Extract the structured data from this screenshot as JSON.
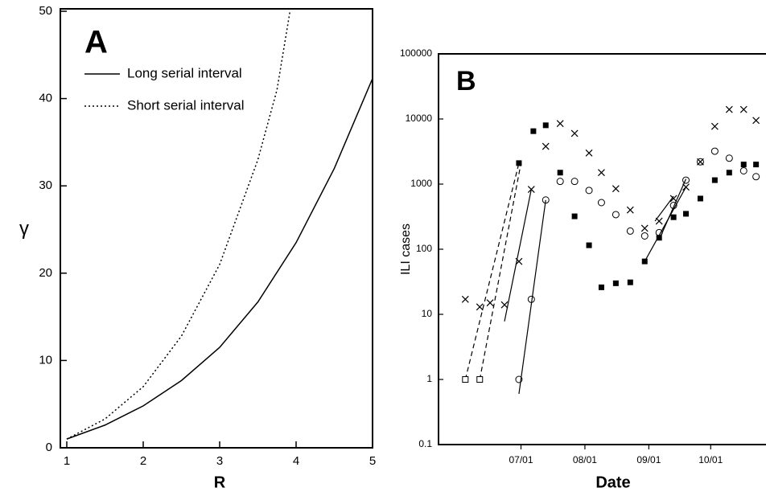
{
  "chart_data": [
    {
      "type": "line",
      "label": "A",
      "x_label": "R",
      "y_label": "γ",
      "xlim": [
        1,
        5
      ],
      "ylim": [
        0,
        50
      ],
      "xticks": [
        1,
        2,
        3,
        4,
        5
      ],
      "yticks": [
        0,
        10,
        20,
        30,
        40,
        50
      ],
      "series": [
        {
          "name": "Long serial interval",
          "style": "solid",
          "color": "#000000",
          "x": [
            1,
            1.5,
            2,
            2.5,
            3,
            3.5,
            4,
            4.5,
            5
          ],
          "values": [
            1,
            2.6,
            4.8,
            7.7,
            11.5,
            16.7,
            23.5,
            32,
            42.3
          ]
        },
        {
          "name": "Short serial interval",
          "style": "dotted",
          "color": "#000000",
          "x": [
            1,
            1.5,
            2,
            2.5,
            3,
            3.5,
            3.75,
            3.92
          ],
          "values": [
            1,
            3.3,
            7,
            12.8,
            21,
            33,
            41,
            50
          ]
        }
      ]
    },
    {
      "type": "scatter",
      "label": "B",
      "x_label": "Date",
      "y_label": "ILI cases",
      "yscale": "log",
      "xlim": [
        "05/22",
        "10/29"
      ],
      "ylim": [
        0.1,
        100000
      ],
      "xticks": [
        "07/01",
        "08/01",
        "09/01",
        "10/01"
      ],
      "yticks": [
        0.1,
        1,
        10,
        100,
        1000,
        10000,
        100000
      ],
      "series": [
        {
          "marker": "filled-square",
          "color": "#000000",
          "x": [
            "06/30",
            "07/07",
            "07/13",
            "07/20",
            "07/27",
            "08/03",
            "08/09",
            "08/16",
            "08/23",
            "08/30",
            "09/06",
            "09/13",
            "09/19",
            "09/26",
            "10/03",
            "10/10",
            "10/17",
            "10/23"
          ],
          "values": [
            2100,
            6500,
            8000,
            1500,
            320,
            115,
            26,
            30,
            31,
            65,
            150,
            310,
            350,
            600,
            1150,
            1500,
            2000,
            2000
          ]
        },
        {
          "marker": "cross",
          "color": "#000000",
          "x": [
            "06/04",
            "06/11",
            "06/16",
            "06/23",
            "06/30",
            "07/06",
            "07/13",
            "07/20",
            "07/27",
            "08/03",
            "08/09",
            "08/16",
            "08/23",
            "08/30",
            "09/06",
            "09/13",
            "09/19",
            "09/26",
            "10/03",
            "10/10",
            "10/17",
            "10/23"
          ],
          "values": [
            17,
            13,
            15,
            14,
            65,
            830,
            3800,
            8500,
            6000,
            3000,
            1500,
            850,
            400,
            210,
            270,
            600,
            900,
            2200,
            7700,
            14000,
            14000,
            9500
          ]
        },
        {
          "marker": "open-circle",
          "color": "#000000",
          "x": [
            "06/30",
            "07/06",
            "07/13",
            "07/20",
            "07/27",
            "08/03",
            "08/09",
            "08/16",
            "08/23",
            "08/30",
            "09/06",
            "09/13",
            "09/19",
            "09/26",
            "10/03",
            "10/10",
            "10/17",
            "10/23"
          ],
          "values": [
            1,
            17,
            570,
            1100,
            1100,
            800,
            520,
            340,
            190,
            160,
            180,
            470,
            1150,
            2200,
            3200,
            2500,
            1600,
            1300
          ]
        },
        {
          "marker": "open-square",
          "color": "#000000",
          "x": [
            "06/04",
            "06/11"
          ],
          "values": [
            1,
            1
          ]
        }
      ],
      "lines": [
        {
          "style": "dashed",
          "x": [
            "06/04",
            "06/30"
          ],
          "values": [
            1,
            2100
          ]
        },
        {
          "style": "dashed",
          "x": [
            "06/11",
            "07/01"
          ],
          "values": [
            1,
            2100
          ]
        },
        {
          "style": "solid",
          "x": [
            "06/23",
            "07/06"
          ],
          "values": [
            7.8,
            830
          ]
        },
        {
          "style": "solid",
          "x": [
            "06/30",
            "07/13"
          ],
          "values": [
            0.6,
            570
          ]
        },
        {
          "style": "solid",
          "x": [
            "08/30",
            "09/19"
          ],
          "values": [
            65,
            900
          ]
        },
        {
          "style": "solid",
          "x": [
            "09/06",
            "09/19"
          ],
          "values": [
            140,
            1200
          ]
        },
        {
          "style": "solid",
          "x": [
            "09/04",
            "09/13"
          ],
          "values": [
            270,
            650
          ]
        }
      ]
    }
  ]
}
